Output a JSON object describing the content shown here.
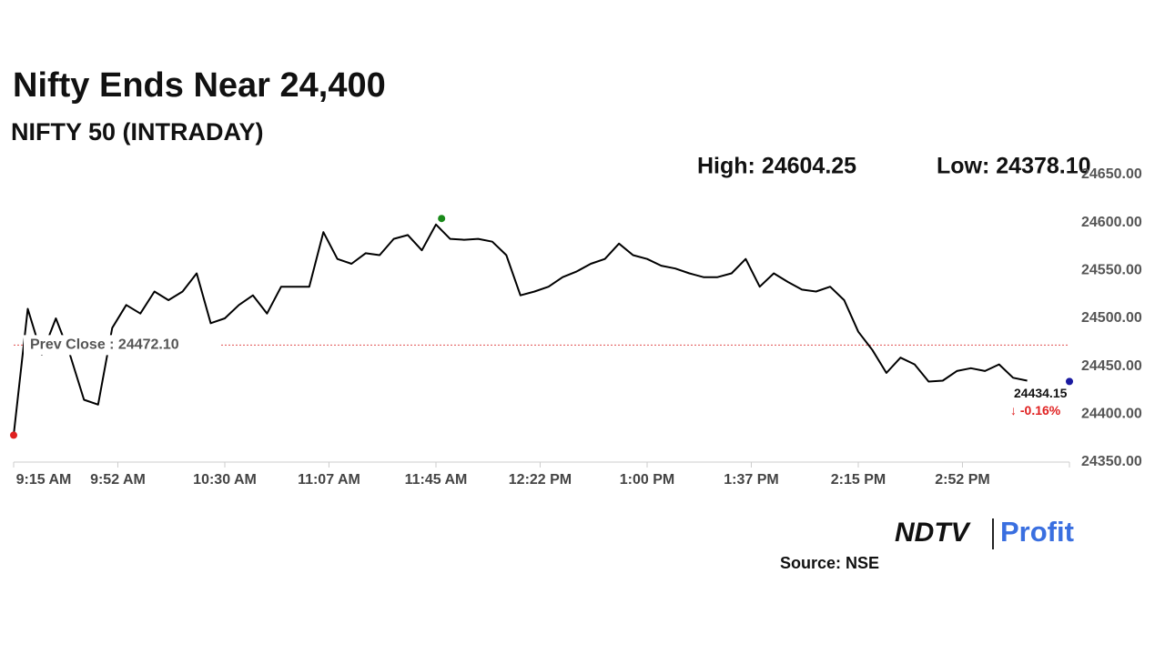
{
  "chart_data": {
    "type": "line",
    "title": "Nifty Ends Near 24,400",
    "subtitle": "NIFTY 50 (INTRADAY)",
    "high_label": "High: 24604.25",
    "low_label": "Low: 24378.10",
    "x": [
      "9:15 AM",
      "9:20 AM",
      "9:25 AM",
      "9:30 AM",
      "9:35 AM",
      "9:40 AM",
      "9:45 AM",
      "9:50 AM",
      "9:55 AM",
      "10:00 AM",
      "10:05 AM",
      "10:10 AM",
      "10:15 AM",
      "10:20 AM",
      "10:25 AM",
      "10:30 AM",
      "10:35 AM",
      "10:40 AM",
      "10:45 AM",
      "10:50 AM",
      "10:55 AM",
      "11:00 AM",
      "11:05 AM",
      "11:10 AM",
      "11:15 AM",
      "11:20 AM",
      "11:25 AM",
      "11:30 AM",
      "11:35 AM",
      "11:40 AM",
      "11:45 AM",
      "11:50 AM",
      "11:55 AM",
      "12:00 PM",
      "12:05 PM",
      "12:10 PM",
      "12:15 PM",
      "12:20 PM",
      "12:25 PM",
      "12:30 PM",
      "12:35 PM",
      "12:40 PM",
      "12:45 PM",
      "12:50 PM",
      "12:55 PM",
      "1:00 PM",
      "1:05 PM",
      "1:10 PM",
      "1:15 PM",
      "1:20 PM",
      "1:25 PM",
      "1:30 PM",
      "1:35 PM",
      "1:40 PM",
      "1:45 PM",
      "1:50 PM",
      "1:55 PM",
      "2:00 PM",
      "2:05 PM",
      "2:10 PM",
      "2:15 PM",
      "2:20 PM",
      "2:25 PM",
      "2:30 PM",
      "2:35 PM",
      "2:40 PM",
      "2:45 PM",
      "2:50 PM",
      "2:55 PM",
      "3:00 PM",
      "3:05 PM",
      "3:10 PM",
      "3:15 PM"
    ],
    "series": [
      {
        "color": "#000000",
        "values": [
          24378.1,
          24510,
          24462,
          24500,
          24462,
          24415,
          24410,
          24490,
          24514,
          24505,
          24528,
          24519,
          24528,
          24547,
          24495,
          24500,
          24514,
          24524,
          24505,
          24533,
          24533,
          24533,
          24590,
          24562,
          24557,
          24568,
          24566,
          24583,
          24587,
          24571,
          24598,
          24583,
          24582,
          24583,
          24580,
          24566,
          24524,
          24528,
          24533,
          24543,
          24549,
          24557,
          24562,
          24578,
          24566,
          24562,
          24555,
          24552,
          24547,
          24543,
          24543,
          24547,
          24562,
          24533,
          24547,
          24538,
          24530,
          24528,
          24533,
          24519,
          24486,
          24467,
          24443,
          24459,
          24452,
          24434,
          24435,
          24445,
          24448,
          24445,
          24452,
          24438,
          24435
        ]
      }
    ],
    "low_point": {
      "x": "9:15 AM",
      "value": 24378.1,
      "color": "#e02020"
    },
    "high_point": {
      "x": "11:47 AM",
      "value": 24604.25,
      "color": "#1a8a1a"
    },
    "last_point": {
      "x": "3:30 PM",
      "value": 24434.15,
      "change": "↓ -0.16%",
      "color": "#1a1aa0",
      "change_color": "#e02020"
    },
    "prev_close": {
      "value": 24472.1,
      "label": "Prev Close : 24472.10",
      "color": "#e05050"
    },
    "xlim": [
      "9:15 AM",
      "3:30 PM"
    ],
    "xticks": [
      "9:15 AM",
      "9:52 AM",
      "10:30 AM",
      "11:07 AM",
      "11:45 AM",
      "12:22 PM",
      "1:00 PM",
      "1:37 PM",
      "2:15 PM",
      "2:52 PM"
    ],
    "ylim": [
      24350,
      24650
    ],
    "yticks": [
      {
        "value": 24350,
        "label": "24350.00"
      },
      {
        "value": 24400,
        "label": "24400.00"
      },
      {
        "value": 24450,
        "label": "24450.00"
      },
      {
        "value": 24500,
        "label": "24500.00"
      },
      {
        "value": 24550,
        "label": "24550.00"
      },
      {
        "value": 24600,
        "label": "24600.00"
      },
      {
        "value": 24650,
        "label": "24650.00"
      }
    ],
    "grid": false,
    "logo_left": "NDTV",
    "logo_right": "Profit",
    "source": "Source: NSE"
  }
}
